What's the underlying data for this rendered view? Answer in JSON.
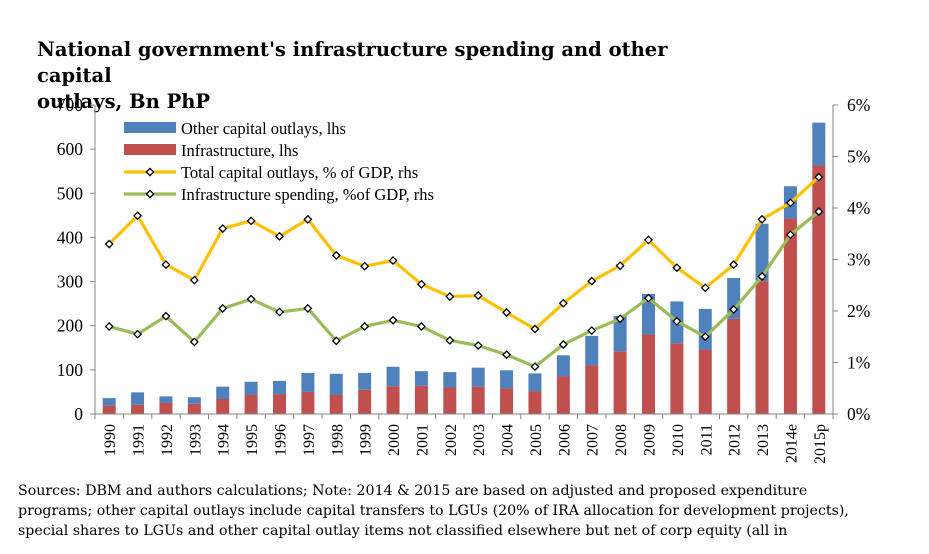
{
  "chart_data": {
    "type": "bar",
    "title": "National government's infrastructure spending and other capital outlays, Bn PhP",
    "title_lines": [
      "National government's infrastructure spending and other capital",
      "outlays, Bn PhP"
    ],
    "categories": [
      "1990",
      "1991",
      "1992",
      "1993",
      "1994",
      "1995",
      "1996",
      "1997",
      "1998",
      "1999",
      "2000",
      "2001",
      "2002",
      "2003",
      "2004",
      "2005",
      "2006",
      "2007",
      "2008",
      "2009",
      "2010",
      "2011",
      "2012",
      "2013",
      "2014e",
      "2015p"
    ],
    "series": [
      {
        "name": "Other capital outlays, lhs",
        "kind": "stacked-bar",
        "axis": "left",
        "color": "#4f81bd",
        "values": [
          17,
          28,
          15,
          15,
          28,
          30,
          30,
          43,
          48,
          38,
          44,
          33,
          35,
          43,
          41,
          40,
          48,
          67,
          80,
          92,
          95,
          93,
          92,
          130,
          73,
          97
        ]
      },
      {
        "name": "Infrastructure, lhs",
        "kind": "stacked-bar",
        "axis": "left",
        "color": "#c0504d",
        "values": [
          19,
          21,
          25,
          23,
          34,
          43,
          45,
          50,
          43,
          55,
          63,
          64,
          60,
          62,
          58,
          52,
          85,
          110,
          142,
          180,
          160,
          145,
          216,
          301,
          443,
          563
        ]
      },
      {
        "name": "Total capital outlays, % of GDP, rhs",
        "kind": "line",
        "axis": "right",
        "color": "#ffc000",
        "marker": "diamond",
        "values": [
          3.3,
          3.85,
          2.9,
          2.6,
          3.6,
          3.75,
          3.45,
          3.78,
          3.08,
          2.87,
          2.98,
          2.52,
          2.28,
          2.3,
          1.97,
          1.65,
          2.15,
          2.58,
          2.88,
          3.38,
          2.84,
          2.45,
          2.9,
          3.78,
          4.1,
          4.6
        ]
      },
      {
        "name": "Infrastructure spending, %of GDP, rhs",
        "kind": "line",
        "axis": "right",
        "color": "#9bbb59",
        "marker": "diamond",
        "values": [
          1.7,
          1.55,
          1.9,
          1.4,
          2.05,
          2.23,
          1.98,
          2.05,
          1.42,
          1.7,
          1.82,
          1.7,
          1.43,
          1.33,
          1.15,
          0.92,
          1.35,
          1.62,
          1.85,
          2.25,
          1.8,
          1.5,
          2.03,
          2.67,
          3.48,
          3.93
        ]
      }
    ],
    "left_axis": {
      "min": 0,
      "max": 700,
      "ticks": [
        "0",
        "100",
        "200",
        "300",
        "400",
        "500",
        "600",
        "700"
      ]
    },
    "right_axis": {
      "min": 0,
      "max": 6,
      "ticks": [
        "0%",
        "1%",
        "2%",
        "3%",
        "4%",
        "5%",
        "6%"
      ]
    },
    "legend_position": "top-left",
    "grid": false
  },
  "note_lines": [
    "Sources: DBM and authors calculations; Note: 2014  & 2015 are based on adjusted and proposed expenditure",
    "programs; other capital outlays include capital transfers to LGUs (20% of IRA allocation for development projects),",
    "special shares to LGUs and other capital outlay items not classified elsewhere but net of corp equity (all in"
  ]
}
